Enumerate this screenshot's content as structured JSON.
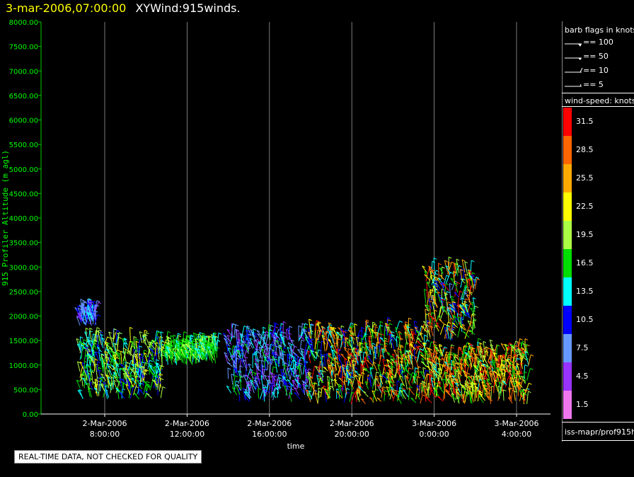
{
  "header": {
    "date_label": "3-mar-2006,07:00:00",
    "plot_name": "XYWind:915winds."
  },
  "legend": {
    "barb_title": "barb flags in knots",
    "barbs": [
      {
        "label": "== 100",
        "kind": "pennant"
      },
      {
        "label": "== 50",
        "kind": "pennant-small"
      },
      {
        "label": "== 10",
        "kind": "full"
      },
      {
        "label": "== 5",
        "kind": "half"
      }
    ],
    "speed_title": "wind-speed: knots",
    "color_scale": [
      {
        "label": "31.5",
        "color": "#ff0000"
      },
      {
        "label": "28.5",
        "color": "#ff6600"
      },
      {
        "label": "25.5",
        "color": "#ffaa00"
      },
      {
        "label": "22.5",
        "color": "#ffff00"
      },
      {
        "label": "19.5",
        "color": "#aaff44"
      },
      {
        "label": "16.5",
        "color": "#00dd00"
      },
      {
        "label": "13.5",
        "color": "#00ffff"
      },
      {
        "label": "10.5",
        "color": "#0000ff"
      },
      {
        "label": "7.5",
        "color": "#6699ff"
      },
      {
        "label": "4.5",
        "color": "#9933ff"
      },
      {
        "label": "1.5",
        "color": "#ee77ee"
      }
    ],
    "source_id": "iss-mapr/prof915h"
  },
  "note": "REAL-TIME DATA, NOT CHECKED FOR QUALITY",
  "chart_data": {
    "type": "scatter",
    "xlabel": "time",
    "ylabel": "915 Profiler Altitude (m agl)",
    "ylim": [
      0,
      8000
    ],
    "yticks": [
      "0.00",
      "500.00",
      "1000.00",
      "1500.00",
      "2000.00",
      "2500.00",
      "3000.00",
      "3500.00",
      "4000.00",
      "4500.00",
      "5000.00",
      "5500.00",
      "6000.00",
      "6500.00",
      "7000.00",
      "7500.00",
      "8000.00"
    ],
    "xticks": [
      {
        "date": "2-Mar-2006",
        "time": "8:00:00"
      },
      {
        "date": "2-Mar-2006",
        "time": "12:00:00"
      },
      {
        "date": "2-Mar-2006",
        "time": "16:00:00"
      },
      {
        "date": "2-Mar-2006",
        "time": "20:00:00"
      },
      {
        "date": "3-Mar-2006",
        "time": "0:00:00"
      },
      {
        "date": "3-Mar-2006",
        "time": "4:00:00"
      }
    ],
    "xlim_hours": [
      7,
      23
    ],
    "wind_bands": [
      {
        "start_hour": 6.8,
        "end_hour": 10.8,
        "alt_min": 300,
        "alt_max": 1500,
        "speed_min": 10,
        "speed_max": 23
      },
      {
        "start_hour": 6.8,
        "end_hour": 7.6,
        "alt_min": 1800,
        "alt_max": 2100,
        "speed_min": 5,
        "speed_max": 14
      },
      {
        "start_hour": 11.0,
        "end_hour": 13.5,
        "alt_min": 1000,
        "alt_max": 1400,
        "speed_min": 14,
        "speed_max": 19
      },
      {
        "start_hour": 14.0,
        "end_hour": 18.0,
        "alt_min": 250,
        "alt_max": 1600,
        "speed_min": 4,
        "speed_max": 16
      },
      {
        "start_hour": 18.0,
        "end_hour": 23.6,
        "alt_min": 200,
        "alt_max": 1700,
        "speed_min": 10,
        "speed_max": 32
      },
      {
        "start_hour": 23.6,
        "end_hour": 28.6,
        "alt_min": 200,
        "alt_max": 1300,
        "speed_min": 14,
        "speed_max": 32
      },
      {
        "start_hour": 23.6,
        "end_hour": 26.0,
        "alt_min": 1500,
        "alt_max": 2900,
        "speed_min": 8,
        "speed_max": 32
      }
    ]
  }
}
